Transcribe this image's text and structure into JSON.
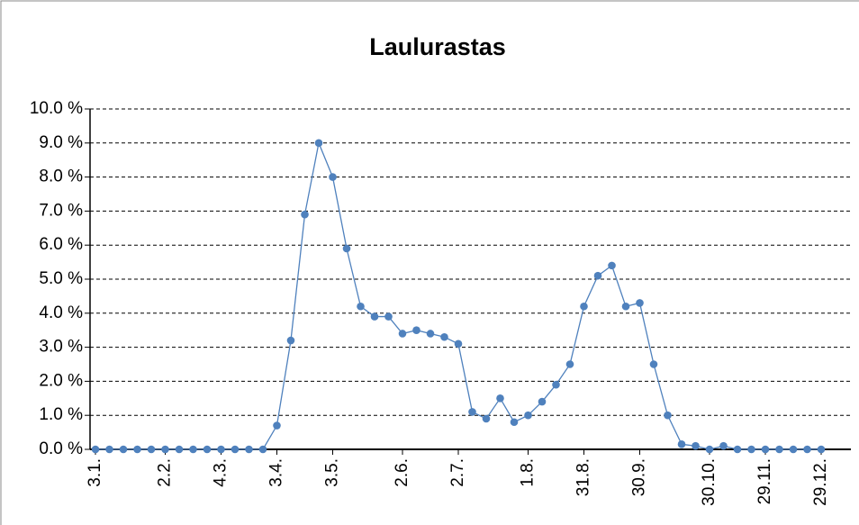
{
  "chart_data": {
    "type": "line",
    "title": "Laulurastas",
    "categories": [
      "3.1.",
      null,
      null,
      null,
      null,
      "2.2.",
      null,
      null,
      null,
      "4.3.",
      null,
      null,
      null,
      "3.4.",
      null,
      null,
      null,
      "3.5.",
      null,
      null,
      null,
      null,
      "2.6.",
      null,
      null,
      null,
      "2.7.",
      null,
      null,
      null,
      null,
      "1.8.",
      null,
      null,
      null,
      "31.8.",
      null,
      null,
      null,
      "30.9.",
      null,
      null,
      null,
      null,
      "30.10.",
      null,
      null,
      null,
      "29.11.",
      null,
      null,
      null,
      "29.12."
    ],
    "series": [
      {
        "name": "Laulurastas",
        "color": "#4f81bd",
        "values": [
          0,
          0,
          0,
          0,
          0,
          0,
          0,
          0,
          0,
          0,
          0,
          0,
          0,
          0.7,
          3.2,
          6.9,
          9.0,
          8.0,
          5.9,
          4.2,
          3.9,
          3.9,
          3.4,
          3.5,
          3.4,
          3.3,
          3.1,
          1.1,
          0.9,
          1.5,
          0.8,
          1.0,
          1.4,
          1.9,
          2.5,
          4.2,
          5.1,
          5.4,
          4.2,
          4.3,
          2.5,
          1.0,
          0.15,
          0.1,
          0,
          0.1,
          0,
          0,
          0,
          0,
          0,
          0,
          0
        ]
      }
    ],
    "ylim": [
      0,
      10
    ],
    "yticks": [
      {
        "value": 0,
        "label": "0.0 %"
      },
      {
        "value": 1,
        "label": "1.0 %"
      },
      {
        "value": 2,
        "label": "2.0 %"
      },
      {
        "value": 3,
        "label": "3.0 %"
      },
      {
        "value": 4,
        "label": "4.0 %"
      },
      {
        "value": 5,
        "label": "5.0 %"
      },
      {
        "value": 6,
        "label": "6.0 %"
      },
      {
        "value": 7,
        "label": "7.0 %"
      },
      {
        "value": 8,
        "label": "8.0 %"
      },
      {
        "value": 9,
        "label": "9.0 %"
      },
      {
        "value": 10,
        "label": "10.0 %"
      }
    ],
    "grid": true
  }
}
